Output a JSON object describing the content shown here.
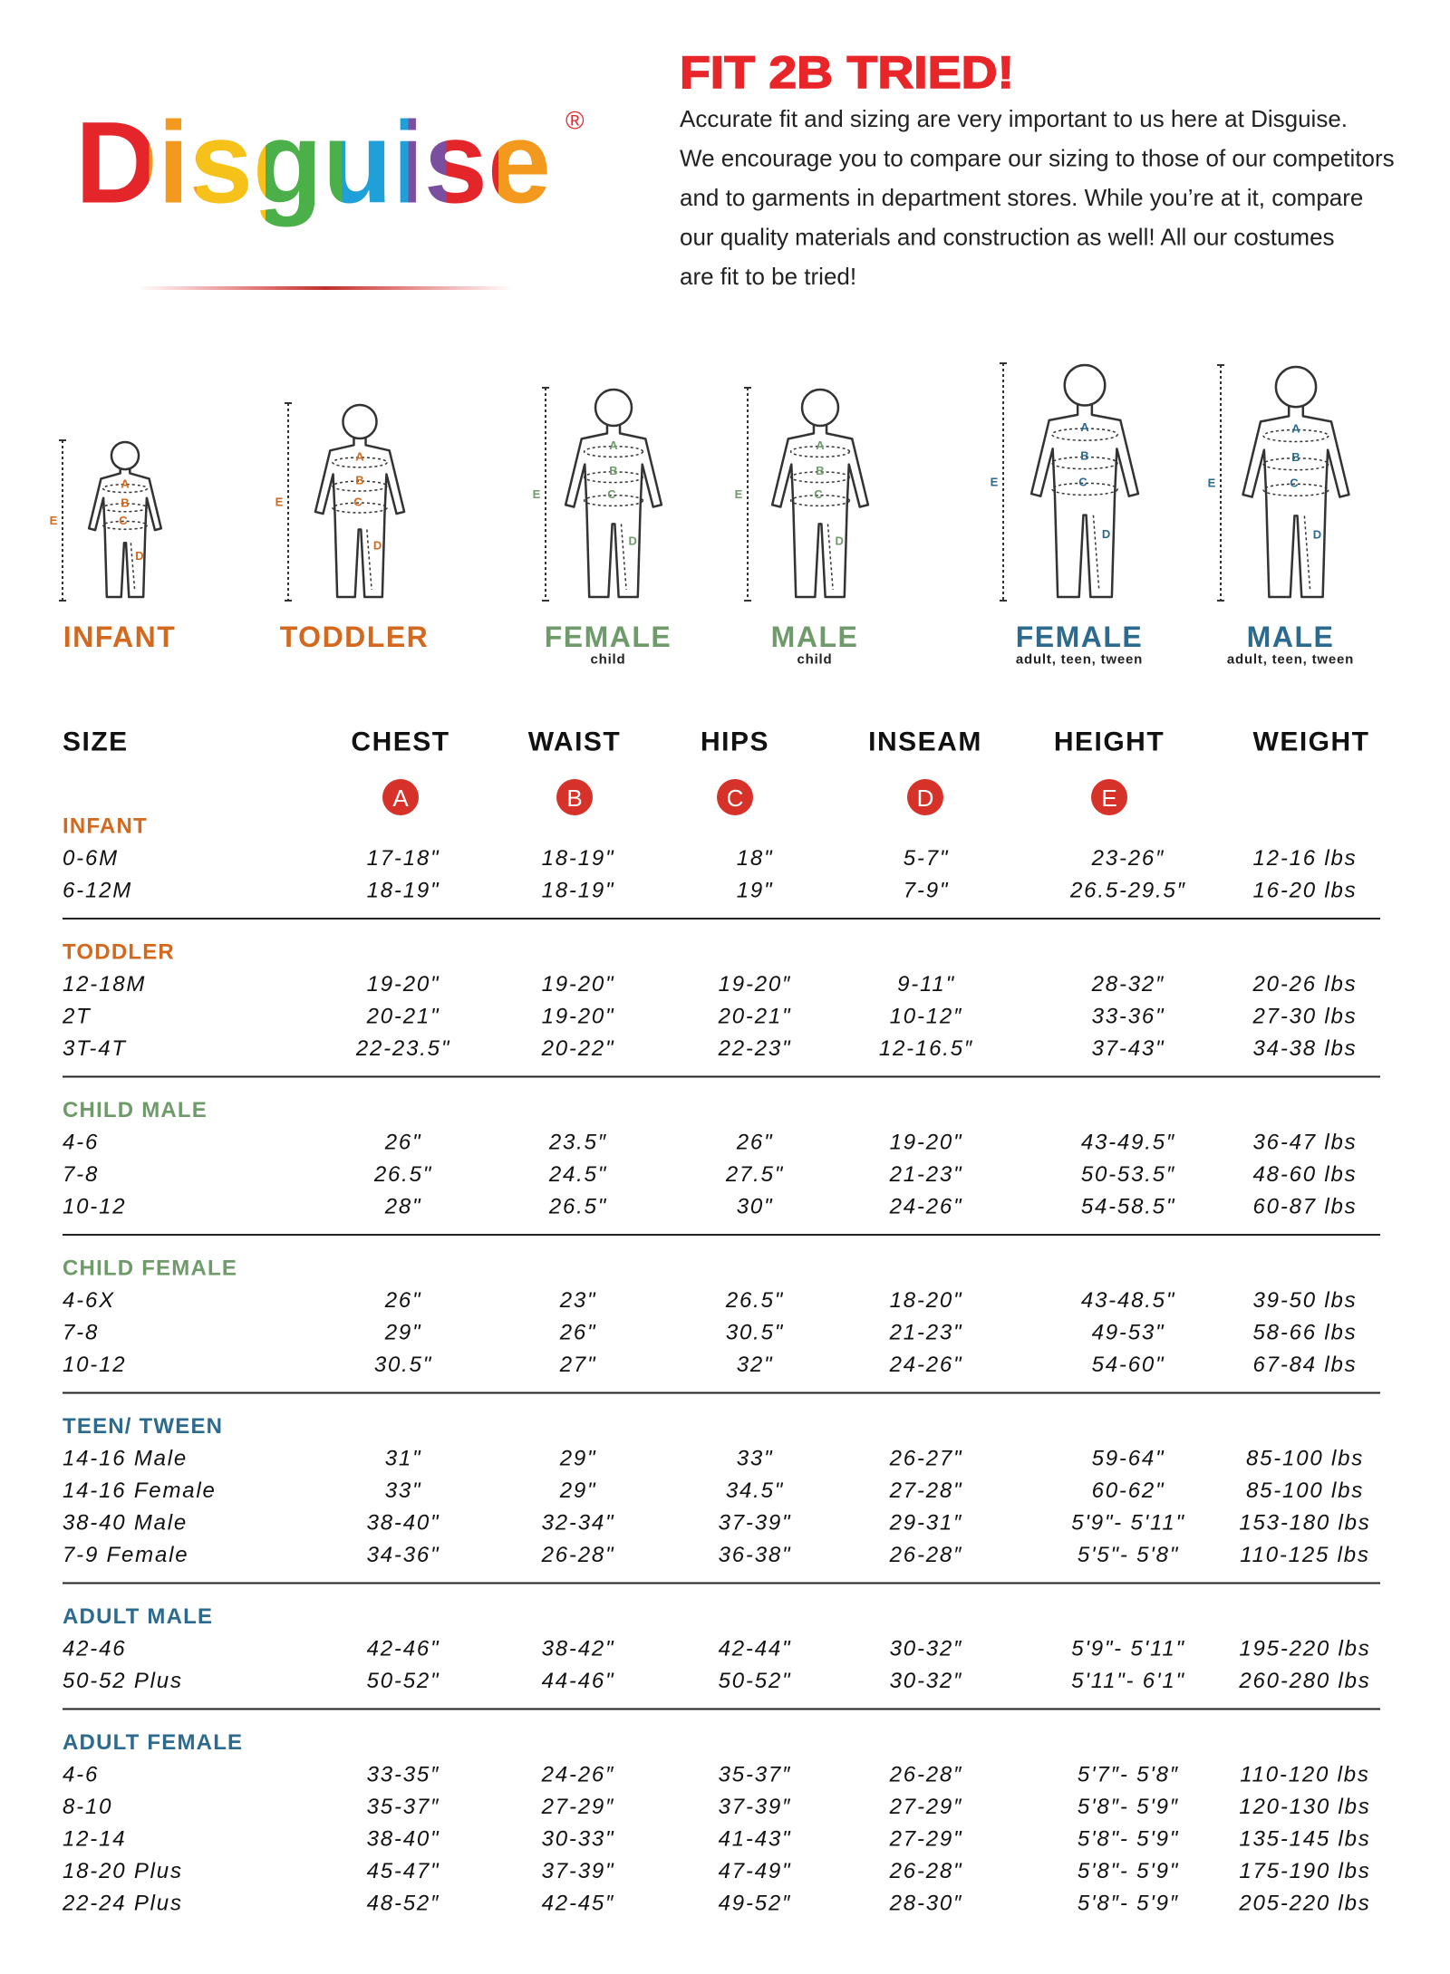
{
  "logo": {
    "name": "Disguise",
    "mark": "®"
  },
  "header": {
    "title": "FIT 2B TRIED!",
    "lines": [
      "Accurate fit and sizing are very important to us here at Disguise.",
      "We encourage you to compare our sizing to those of our competitors",
      "and to garments in department stores. While you’re at it, compare",
      "our quality materials and construction as well! All our costumes",
      "are fit to be tried!"
    ]
  },
  "figures": [
    {
      "label": "INFANT",
      "markers": [
        "A",
        "B",
        "C",
        "D",
        "E"
      ]
    },
    {
      "label": "TODDLER",
      "markers": [
        "A",
        "B",
        "C",
        "D",
        "E"
      ]
    },
    {
      "label": "FEMALE",
      "sublabel": "child",
      "markers": [
        "A",
        "B",
        "C",
        "D",
        "E"
      ]
    },
    {
      "label": "MALE",
      "sublabel": "child",
      "markers": [
        "A",
        "B",
        "C",
        "D",
        "E"
      ]
    },
    {
      "label": "FEMALE",
      "sublabel": "adult, teen, tween",
      "markers": [
        "A",
        "B",
        "C",
        "D",
        "E"
      ]
    },
    {
      "label": "MALE",
      "sublabel": "adult, teen, tween",
      "markers": [
        "A",
        "B",
        "C",
        "D",
        "E"
      ]
    }
  ],
  "table": {
    "columns": [
      "SIZE",
      "CHEST",
      "WAIST",
      "HIPS",
      "INSEAM",
      "HEIGHT",
      "WEIGHT"
    ],
    "badges": [
      "A",
      "B",
      "C",
      "D",
      "E"
    ],
    "groups": [
      {
        "name": "INFANT",
        "rows": [
          [
            "0-6M",
            "17-18\"",
            "18-19\"",
            "18\"",
            "5-7\"",
            "23-26″",
            "12-16 lbs"
          ],
          [
            "6-12M",
            "18-19\"",
            "18-19\"",
            "19\"",
            "7-9\"",
            "26.5-29.5″",
            "16-20 lbs"
          ]
        ]
      },
      {
        "name": "TODDLER",
        "rows": [
          [
            "12-18M",
            "19-20\"",
            "19-20\"",
            "19-20″",
            "9-11\"",
            "28-32″",
            "20-26 lbs"
          ],
          [
            "2T",
            "20-21\"",
            "19-20\"",
            "20-21\"",
            "10-12″",
            "33-36\"",
            "27-30 lbs"
          ],
          [
            "3T-4T",
            "22-23.5\"",
            "20-22\"",
            "22-23\"",
            "12-16.5″",
            "37-43\"",
            "34-38 lbs"
          ]
        ]
      },
      {
        "name": "CHILD MALE",
        "rows": [
          [
            "4-6",
            "26\"",
            "23.5″",
            "26\"",
            "19-20\"",
            "43-49.5″",
            "36-47 lbs"
          ],
          [
            "7-8",
            "26.5\"",
            "24.5\"",
            "27.5\"",
            "21-23\"",
            "50-53.5″",
            "48-60 lbs"
          ],
          [
            "10-12",
            "28\"",
            "26.5\"",
            "30\"",
            "24-26\"",
            "54-58.5\"",
            "60-87 lbs"
          ]
        ]
      },
      {
        "name": "CHILD FEMALE",
        "rows": [
          [
            "4-6X",
            "26\"",
            "23\"",
            "26.5\"",
            "18-20\"",
            "43-48.5\"",
            "39-50 lbs"
          ],
          [
            "7-8",
            "29\"",
            "26\"",
            "30.5\"",
            "21-23\"",
            "49-53\"",
            "58-66 lbs"
          ],
          [
            "10-12",
            "30.5\"",
            "27\"",
            "32\"",
            "24-26\"",
            "54-60\"",
            "67-84 lbs"
          ]
        ]
      },
      {
        "name": "TEEN/ TWEEN",
        "rows": [
          [
            "14-16 Male",
            "31\"",
            "29\"",
            "33\"",
            "26-27\"",
            "59-64\"",
            "85-100 lbs"
          ],
          [
            "14-16 Female",
            "33\"",
            "29\"",
            "34.5\"",
            "27-28\"",
            "60-62\"",
            "85-100 lbs"
          ],
          [
            "38-40 Male",
            "38-40\"",
            "32-34\"",
            "37-39\"",
            "29-31″",
            "5'9\"- 5'11\"",
            "153-180 lbs"
          ],
          [
            "7-9 Female",
            "34-36\"",
            "26-28\"",
            "36-38\"",
            "26-28″",
            "5'5\"- 5'8\"",
            "110-125 lbs"
          ]
        ]
      },
      {
        "name": "ADULT MALE",
        "rows": [
          [
            "42-46",
            "42-46\"",
            "38-42\"",
            "42-44\"",
            "30-32″",
            "5'9\"- 5'11\"",
            "195-220 lbs"
          ],
          [
            "50-52 Plus",
            "50-52\"",
            "44-46\"",
            "50-52\"",
            "30-32″",
            "5'11\"- 6'1\"",
            "260-280 lbs"
          ]
        ]
      },
      {
        "name": "ADULT FEMALE",
        "rows": [
          [
            "4-6",
            "33-35″",
            "24-26″",
            "35-37″",
            "26-28″",
            "5'7″- 5'8″",
            "110-120 lbs"
          ],
          [
            "8-10",
            "35-37″",
            "27-29″",
            "37-39″",
            "27-29″",
            "5'8″- 5'9″",
            "120-130 lbs"
          ],
          [
            "12-14",
            "38-40\"",
            "30-33\"",
            "41-43\"",
            "27-29\"",
            "5'8\"- 5'9\"",
            "135-145 lbs"
          ],
          [
            "18-20 Plus",
            "45-47\"",
            "37-39\"",
            "47-49\"",
            "26-28\"",
            "5'8\"- 5'9\"",
            "175-190 lbs"
          ],
          [
            "22-24 Plus",
            "48-52″",
            "42-45″",
            "49-52″",
            "28-30″",
            "5'8″- 5'9″",
            "205-220 lbs"
          ]
        ]
      }
    ]
  }
}
